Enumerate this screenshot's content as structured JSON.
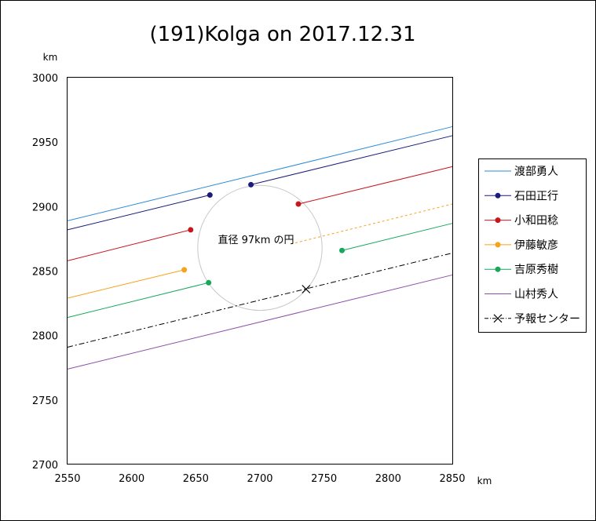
{
  "chart_data": {
    "type": "line",
    "title": "(191)Kolga on 2017.12.31",
    "xlabel": "km",
    "ylabel": "km",
    "xlim": [
      2550,
      2850
    ],
    "ylim": [
      2700,
      3000
    ],
    "xticks": [
      2550,
      2600,
      2650,
      2700,
      2750,
      2800,
      2850
    ],
    "yticks": [
      2700,
      2750,
      2800,
      2850,
      2900,
      2950,
      3000
    ],
    "circle": {
      "label": "直径 97km の円",
      "center": [
        2700,
        2868
      ],
      "diameter_km": 97
    },
    "series": [
      {
        "name": "渡部勇人",
        "color": "#2e8bd6",
        "style": "solid",
        "marker": false,
        "segments": [
          [
            [
              2550,
              2889
            ],
            [
              2850,
              2962
            ]
          ]
        ]
      },
      {
        "name": "石田正行",
        "color": "#1c1c7a",
        "style": "solid",
        "marker": true,
        "segments": [
          [
            [
              2550,
              2882
            ],
            [
              2661,
              2909
            ]
          ],
          [
            [
              2693,
              2917
            ],
            [
              2850,
              2955
            ]
          ]
        ],
        "points": [
          [
            2661,
            2909
          ],
          [
            2693,
            2917
          ]
        ]
      },
      {
        "name": "小和田稔",
        "color": "#c8161d",
        "style": "solid",
        "marker": true,
        "segments": [
          [
            [
              2550,
              2858
            ],
            [
              2646,
              2882
            ]
          ],
          [
            [
              2730,
              2902
            ],
            [
              2850,
              2931
            ]
          ]
        ],
        "points": [
          [
            2646,
            2882
          ],
          [
            2730,
            2902
          ]
        ]
      },
      {
        "name": "伊藤敏彦",
        "color": "#f7a21b",
        "style": "solid",
        "marker": true,
        "segments": [
          [
            [
              2550,
              2829
            ],
            [
              2641,
              2851
            ]
          ]
        ],
        "dashed_segments": [
          [
            [
              2724,
              2871
            ],
            [
              2850,
              2902
            ]
          ]
        ],
        "points": [
          [
            2641,
            2851
          ]
        ]
      },
      {
        "name": "吉原秀樹",
        "color": "#17a85b",
        "style": "solid",
        "marker": true,
        "segments": [
          [
            [
              2550,
              2814
            ],
            [
              2660,
              2841
            ]
          ],
          [
            [
              2764,
              2866
            ],
            [
              2850,
              2887
            ]
          ]
        ],
        "points": [
          [
            2660,
            2841
          ],
          [
            2764,
            2866
          ]
        ]
      },
      {
        "name": "山村秀人",
        "color": "#8a4fa8",
        "style": "solid",
        "marker": false,
        "segments": [
          [
            [
              2550,
              2774
            ],
            [
              2850,
              2847
            ]
          ]
        ]
      },
      {
        "name": "予報センター",
        "color": "#000000",
        "style": "dashdot",
        "marker": "x",
        "segments": [
          [
            [
              2550,
              2791
            ],
            [
              2850,
              2864
            ]
          ]
        ],
        "points": [
          [
            2736,
            2836
          ]
        ]
      }
    ]
  }
}
